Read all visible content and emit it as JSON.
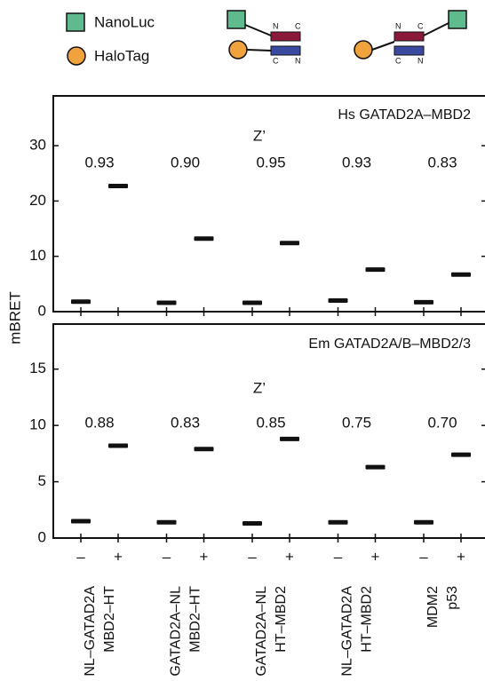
{
  "legend": {
    "items": [
      "NanoLuc",
      "HaloTag"
    ]
  },
  "schematics": [
    {
      "labels": [
        "N",
        "C",
        "C",
        "N"
      ]
    },
    {
      "labels": [
        "N",
        "C",
        "C",
        "N"
      ]
    }
  ],
  "chart_data": [
    {
      "type": "dot",
      "title": "Hs GATAD2A–MBD2",
      "y_label": "mBRET",
      "z_label": "Z’",
      "z_values": [
        0.93,
        0.9,
        0.95,
        0.93,
        0.83
      ],
      "z_value_labels": [
        "0.93",
        "0.90",
        "0.95",
        "0.93",
        "0.83"
      ],
      "values": [
        1.8,
        22.7,
        1.6,
        13.2,
        1.6,
        12.4,
        2.0,
        7.6,
        1.7,
        6.7
      ],
      "color": "#111111",
      "ylim": [
        0,
        39
      ],
      "yticks": [
        0,
        10,
        20,
        30
      ]
    },
    {
      "type": "dot",
      "title": "Em GATAD2A/B–MBD2/3",
      "z_label": "Z’",
      "z_values": [
        0.88,
        0.83,
        0.85,
        0.75,
        0.7
      ],
      "z_value_labels": [
        "0.88",
        "0.83",
        "0.85",
        "0.75",
        "0.70"
      ],
      "categories": [
        "–",
        "+",
        "–",
        "+",
        "–",
        "+",
        "–",
        "+",
        "–",
        "+"
      ],
      "groups": [
        [
          "NL–GATAD2A",
          "MBD2–HT"
        ],
        [
          "GATAD2A–NL",
          "MBD2–HT"
        ],
        [
          "GATAD2A–NL",
          "HT–MBD2"
        ],
        [
          "NL–GATAD2A",
          "HT–MBD2"
        ],
        [
          "MDM2",
          "p53"
        ]
      ],
      "values": [
        1.5,
        8.2,
        1.4,
        7.9,
        1.3,
        8.8,
        1.4,
        6.3,
        1.4,
        7.4
      ],
      "color": "#111111",
      "ylim": [
        0,
        19
      ],
      "yticks": [
        0,
        5,
        10,
        15
      ]
    }
  ]
}
